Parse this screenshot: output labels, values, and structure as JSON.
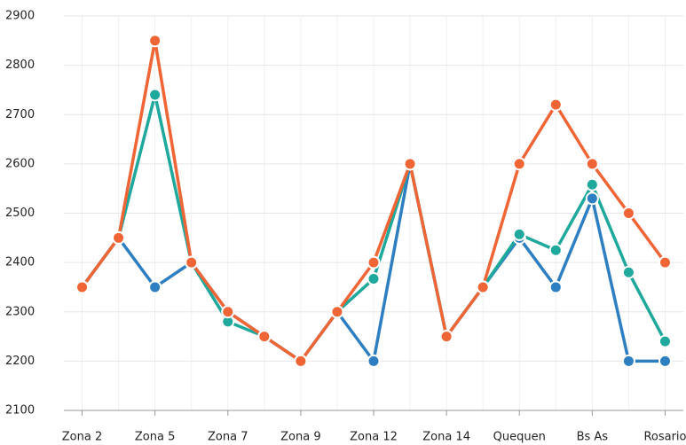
{
  "chart_data": {
    "type": "line",
    "categories": [
      "Zona 2",
      null,
      "Zona 5",
      null,
      "Zona 7",
      null,
      "Zona 9",
      null,
      "Zona 12",
      null,
      "Zona 14",
      null,
      "Quequen",
      null,
      "Bs As",
      null,
      "Rosario"
    ],
    "series": [
      {
        "color": "#2e7fc1",
        "values": [
          2350,
          2450,
          2350,
          2400,
          2300,
          2250,
          2200,
          2300,
          2200,
          2600,
          2250,
          2350,
          2450,
          2350,
          2530,
          2200,
          2200
        ]
      },
      {
        "color": "#1fa89c",
        "values": [
          2350,
          2450,
          2740,
          2400,
          2280,
          2250,
          2200,
          2300,
          2367,
          2600,
          2250,
          2350,
          2457,
          2425,
          2558,
          2380,
          2240
        ]
      },
      {
        "color": "#ef6535",
        "values": [
          2350,
          2450,
          2850,
          2400,
          2300,
          2250,
          2200,
          2300,
          2400,
          2600,
          2250,
          2350,
          2600,
          2720,
          2600,
          2500,
          2400
        ]
      }
    ],
    "ylim": [
      2100,
      2900
    ],
    "yticks": [
      2100,
      2200,
      2300,
      2400,
      2500,
      2600,
      2700,
      2800,
      2900
    ],
    "grid": true
  }
}
